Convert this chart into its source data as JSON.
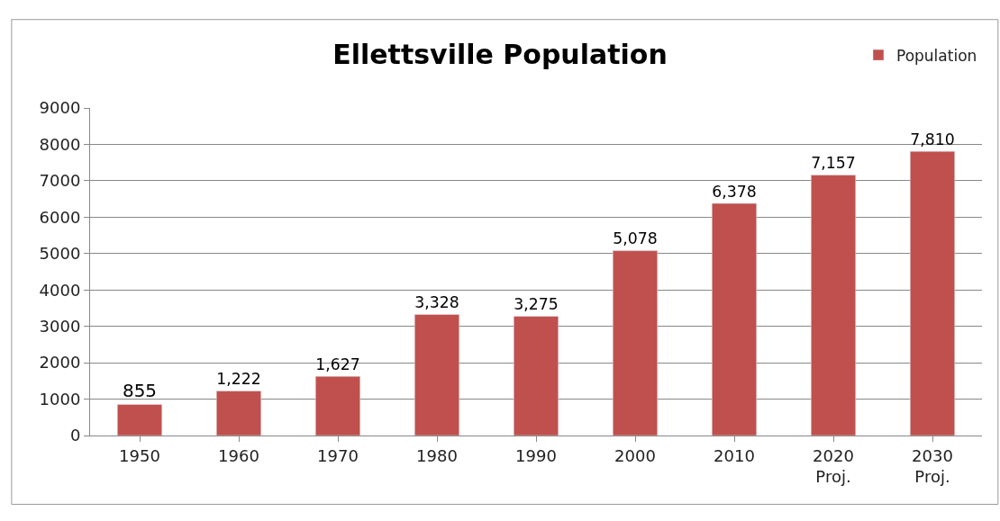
{
  "chart_data": {
    "type": "bar",
    "title": "Ellettsville Population",
    "categories": [
      "1950",
      "1960",
      "1970",
      "1980",
      "1990",
      "2000",
      "2010",
      "2020\nProj.",
      "2030\nProj."
    ],
    "series": [
      {
        "name": "Population",
        "color": "#c0504d",
        "values": [
          855,
          1222,
          1627,
          3328,
          3275,
          5078,
          6378,
          7157,
          7810
        ],
        "value_labels": [
          "855",
          "1,222",
          "1,627",
          "3,328",
          "3,275",
          "5,078",
          "6,378",
          "7,157",
          "7,810"
        ]
      }
    ],
    "ylim": [
      0,
      9000
    ],
    "yticks": [
      0,
      1000,
      2000,
      3000,
      4000,
      5000,
      6000,
      7000,
      8000,
      9000
    ],
    "grid": "y",
    "legend": "top right"
  }
}
